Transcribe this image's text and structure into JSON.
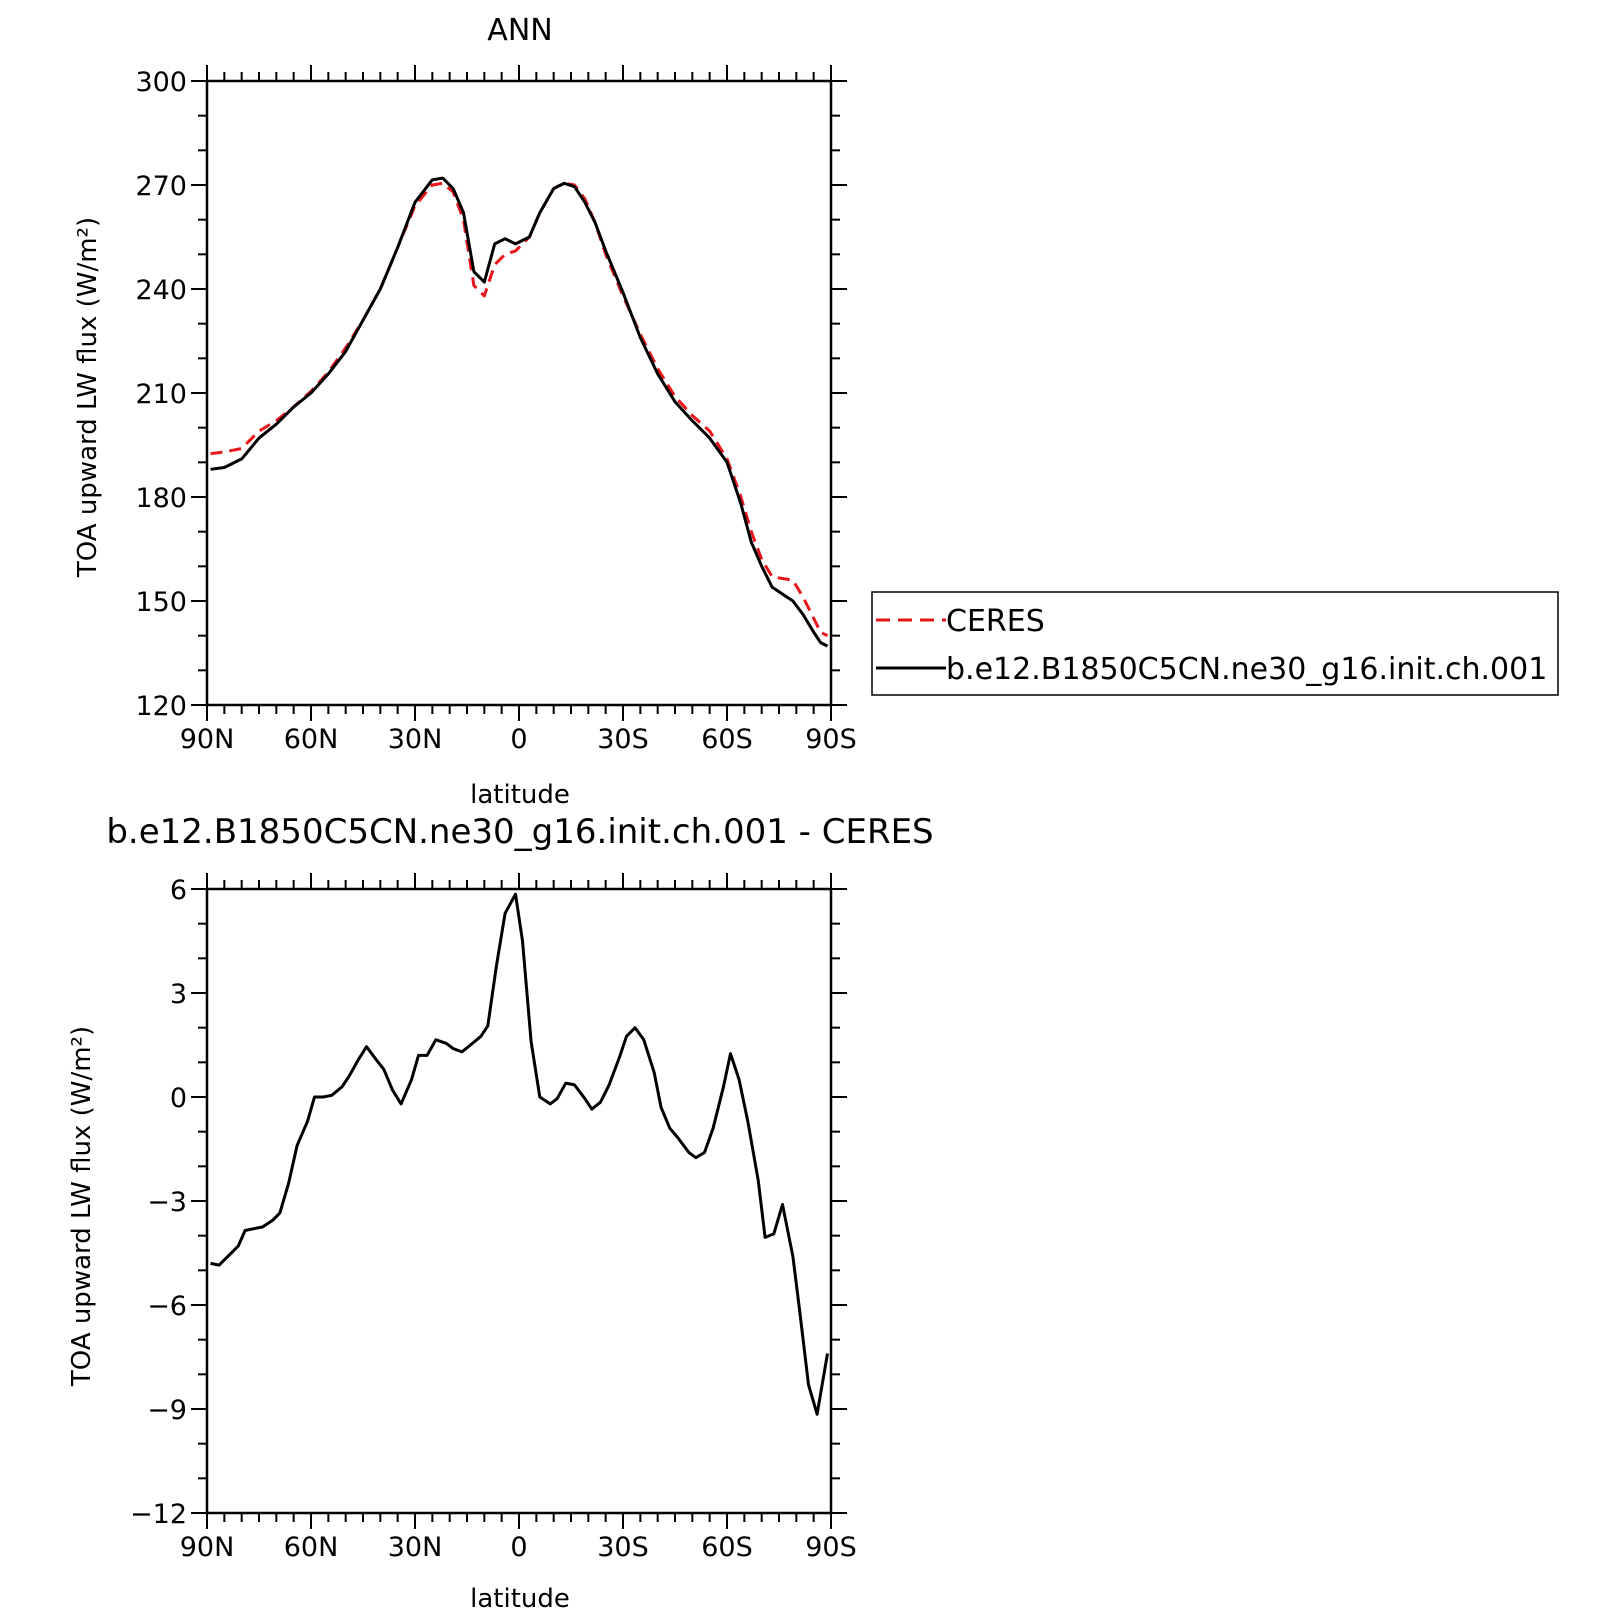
{
  "chart_data": [
    {
      "type": "line",
      "title": "ANN",
      "xlabel": "latitude",
      "ylabel": "TOA upward LW flux (W/m²)",
      "xlim": [
        90,
        -90
      ],
      "ylim": [
        120,
        300
      ],
      "yticks": [
        120,
        150,
        180,
        210,
        240,
        270,
        300
      ],
      "xticks": [
        90,
        60,
        30,
        0,
        -30,
        -60,
        -90
      ],
      "xticklabels": [
        "90N",
        "60N",
        "30N",
        "0",
        "30S",
        "60S",
        "90S"
      ],
      "legend_position": "right",
      "series": [
        {
          "name": "CERES",
          "color": "#e8161b",
          "dash": "dashed",
          "x": [
            89,
            85,
            80,
            75,
            70,
            65,
            60,
            55,
            50,
            45,
            40,
            35,
            30,
            25,
            22,
            19,
            16,
            13,
            10,
            7,
            4,
            1,
            -3,
            -6,
            -10,
            -13,
            -16,
            -19,
            -22,
            -25,
            -30,
            -35,
            -40,
            -45,
            -50,
            -55,
            -60,
            -64,
            -67,
            -70,
            -73,
            -76,
            -79,
            -82,
            -85,
            -87,
            -89
          ],
          "values": [
            192.5,
            193,
            194,
            199,
            202,
            206,
            210.5,
            216,
            223,
            231,
            240,
            252,
            264,
            270,
            270.5,
            268,
            260,
            241,
            238,
            247,
            250,
            251,
            255,
            262,
            269,
            270.5,
            270,
            266,
            259,
            250,
            238,
            227,
            217,
            209,
            203.5,
            199,
            191,
            180,
            170,
            162,
            157,
            156.5,
            156,
            151,
            145,
            141,
            140
          ]
        },
        {
          "name": "b.e12.B1850C5CN.ne30_g16.init.ch.001",
          "color": "#000000",
          "dash": "solid",
          "x": [
            89,
            85,
            80,
            75,
            70,
            65,
            60,
            55,
            50,
            45,
            40,
            35,
            30,
            25,
            22,
            19,
            16,
            13,
            10,
            7,
            4,
            1,
            -3,
            -6,
            -10,
            -13,
            -16,
            -19,
            -22,
            -25,
            -30,
            -35,
            -40,
            -45,
            -50,
            -55,
            -60,
            -64,
            -67,
            -70,
            -73,
            -76,
            -79,
            -82,
            -85,
            -87,
            -89
          ],
          "values": [
            188,
            188.5,
            191,
            197,
            201,
            206,
            210,
            215.5,
            222,
            231,
            240,
            252,
            265,
            271.5,
            272,
            269,
            262,
            245,
            242,
            253,
            254.5,
            253,
            255,
            262,
            269,
            270.5,
            269.5,
            265,
            259,
            251,
            239,
            226,
            215.5,
            207.5,
            202,
            197,
            190,
            178,
            167,
            160,
            154,
            152,
            150,
            146,
            141,
            138,
            137
          ]
        }
      ]
    },
    {
      "type": "line",
      "title": "b.e12.B1850C5CN.ne30_g16.init.ch.001 - CERES",
      "xlabel": "latitude",
      "ylabel": "TOA upward LW flux (W/m²)",
      "xlim": [
        90,
        -90
      ],
      "ylim": [
        -12,
        6
      ],
      "yticks": [
        -12,
        -9,
        -6,
        -3,
        0,
        3,
        6
      ],
      "yticklabels": [
        "−12",
        "−9",
        "−6",
        "−3",
        "0",
        "3",
        "6"
      ],
      "xticks": [
        90,
        60,
        30,
        0,
        -30,
        -60,
        -90
      ],
      "xticklabels": [
        "90N",
        "60N",
        "30N",
        "0",
        "30S",
        "60S",
        "90S"
      ],
      "series": [
        {
          "color": "#000000",
          "dash": "solid",
          "x": [
            89,
            86.5,
            84,
            81,
            79,
            76.5,
            74,
            71,
            69,
            66.5,
            64,
            61,
            59,
            56.5,
            54,
            51,
            49,
            46.5,
            44,
            41,
            39,
            36.5,
            34,
            31,
            29,
            26.5,
            24,
            21,
            19,
            16.5,
            14,
            11,
            9,
            6.5,
            4,
            1,
            -1,
            -3.5,
            -6,
            -9,
            -11,
            -13.5,
            -16,
            -19,
            -21,
            -23.5,
            -26,
            -29,
            -31,
            -33.5,
            -36,
            -39,
            -41,
            -43.5,
            -46,
            -49,
            -51,
            -53.5,
            -56,
            -59,
            -61,
            -63.5,
            -66,
            -69,
            -71,
            -73.5,
            -76,
            -79,
            -81,
            -83.5,
            -86,
            -89
          ],
          "values": [
            -4.8,
            -4.85,
            -4.6,
            -4.3,
            -3.85,
            -3.8,
            -3.75,
            -3.55,
            -3.35,
            -2.5,
            -1.4,
            -0.7,
            0.0,
            0.0,
            0.05,
            0.3,
            0.6,
            1.05,
            1.45,
            1.05,
            0.8,
            0.2,
            -0.2,
            0.5,
            1.2,
            1.2,
            1.65,
            1.55,
            1.4,
            1.3,
            1.5,
            1.75,
            2.05,
            3.8,
            5.3,
            5.85,
            4.5,
            1.6,
            0.0,
            -0.2,
            -0.05,
            0.4,
            0.35,
            -0.05,
            -0.35,
            -0.15,
            0.35,
            1.15,
            1.75,
            2.0,
            1.65,
            0.7,
            -0.3,
            -0.9,
            -1.2,
            -1.6,
            -1.75,
            -1.6,
            -0.9,
            0.3,
            1.25,
            0.5,
            -0.7,
            -2.4,
            -4.05,
            -3.95,
            -3.1,
            -4.6,
            -6.2,
            -8.3,
            -9.15,
            -7.4
          ]
        }
      ]
    }
  ]
}
